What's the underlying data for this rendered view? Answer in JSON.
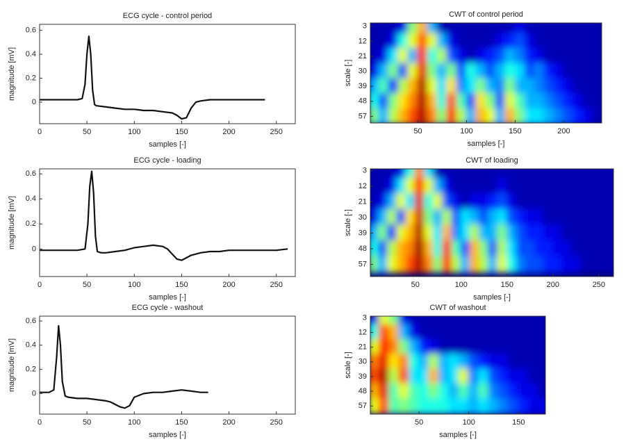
{
  "chart_data": [
    {
      "type": "line",
      "title": "ECG cycle - control period",
      "xlabel": "samples [-]",
      "ylabel": "magnitude [mV]",
      "xlim": [
        0,
        270
      ],
      "xticks": [
        0,
        50,
        100,
        150,
        200,
        250
      ],
      "ylim": [
        -0.18,
        0.65
      ],
      "yticks": [
        0,
        0.2,
        0.4,
        0.6
      ],
      "series": [
        {
          "color": "#111111",
          "x": [
            0,
            10,
            20,
            30,
            40,
            45,
            48,
            50,
            52,
            54,
            56,
            58,
            60,
            70,
            80,
            90,
            100,
            110,
            120,
            130,
            140,
            145,
            150,
            155,
            160,
            165,
            170,
            180,
            190,
            200,
            210,
            220,
            230,
            238
          ],
          "values": [
            0.02,
            0.02,
            0.02,
            0.02,
            0.02,
            0.03,
            0.15,
            0.4,
            0.55,
            0.4,
            0.1,
            -0.02,
            -0.03,
            -0.04,
            -0.05,
            -0.06,
            -0.06,
            -0.07,
            -0.07,
            -0.08,
            -0.09,
            -0.11,
            -0.14,
            -0.13,
            -0.05,
            0.0,
            0.01,
            0.02,
            0.02,
            0.02,
            0.02,
            0.02,
            0.02,
            0.02
          ]
        }
      ]
    },
    {
      "type": "heatmap",
      "title": "CWT of control period",
      "xlabel": "samples [-]",
      "ylabel": "scale [-]",
      "colormap": "jet",
      "xlim": [
        1,
        239
      ],
      "xticks": [
        50,
        100,
        150,
        200
      ],
      "ylim": [
        61,
        1
      ],
      "yticks": [
        3,
        12,
        21,
        30,
        39,
        48,
        57
      ],
      "x": [
        5,
        15,
        25,
        35,
        45,
        55,
        65,
        75,
        85,
        95,
        105,
        115,
        125,
        135,
        145,
        155,
        165,
        175,
        185,
        195,
        205,
        215,
        225,
        235
      ],
      "y": [
        3,
        12,
        21,
        30,
        39,
        48,
        57
      ],
      "z": [
        [
          0.05,
          0.05,
          0.05,
          0.1,
          0.5,
          0.7,
          0.3,
          0.05,
          0.05,
          0.05,
          0.05,
          0.05,
          0.05,
          0.05,
          0.05,
          0.1,
          0.05,
          0.05,
          0.05,
          0.05,
          0.05,
          0.05,
          0.05,
          0.05
        ],
        [
          0.05,
          0.05,
          0.1,
          0.4,
          0.6,
          0.8,
          0.6,
          0.3,
          0.1,
          0.05,
          0.05,
          0.05,
          0.05,
          0.1,
          0.15,
          0.2,
          0.1,
          0.05,
          0.05,
          0.05,
          0.05,
          0.05,
          0.05,
          0.05
        ],
        [
          0.05,
          0.1,
          0.35,
          0.6,
          0.3,
          0.85,
          0.4,
          0.55,
          0.2,
          0.1,
          0.05,
          0.1,
          0.15,
          0.2,
          0.3,
          0.25,
          0.15,
          0.1,
          0.05,
          0.05,
          0.05,
          0.05,
          0.05,
          0.05
        ],
        [
          0.1,
          0.3,
          0.5,
          0.2,
          0.6,
          0.9,
          0.5,
          0.3,
          0.5,
          0.2,
          0.4,
          0.3,
          0.2,
          0.3,
          0.4,
          0.35,
          0.2,
          0.25,
          0.15,
          0.1,
          0.05,
          0.05,
          0.05,
          0.05
        ],
        [
          0.3,
          0.45,
          0.15,
          0.55,
          0.7,
          0.95,
          0.6,
          0.35,
          0.65,
          0.25,
          0.35,
          0.5,
          0.3,
          0.25,
          0.5,
          0.3,
          0.3,
          0.25,
          0.2,
          0.15,
          0.1,
          0.05,
          0.05,
          0.05
        ],
        [
          0.4,
          0.2,
          0.5,
          0.65,
          0.75,
          0.95,
          0.7,
          0.4,
          0.8,
          0.45,
          0.2,
          0.65,
          0.5,
          0.2,
          0.6,
          0.45,
          0.3,
          0.3,
          0.25,
          0.2,
          0.15,
          0.1,
          0.05,
          0.05
        ],
        [
          0.5,
          0.3,
          0.55,
          0.7,
          0.8,
          0.95,
          0.75,
          0.5,
          0.85,
          0.55,
          0.3,
          0.7,
          0.6,
          0.3,
          0.7,
          0.5,
          0.35,
          0.35,
          0.3,
          0.25,
          0.2,
          0.15,
          0.1,
          0.05
        ]
      ]
    },
    {
      "type": "line",
      "title": "ECG cycle - loading",
      "xlabel": "samples [-]",
      "ylabel": "magnitude [mV]",
      "xlim": [
        0,
        270
      ],
      "xticks": [
        0,
        50,
        100,
        150,
        200,
        250
      ],
      "ylim": [
        -0.22,
        0.64
      ],
      "yticks": [
        0,
        0.2,
        0.4,
        0.6
      ],
      "series": [
        {
          "color": "#111111",
          "x": [
            0,
            10,
            20,
            30,
            40,
            48,
            51,
            53,
            55,
            57,
            59,
            61,
            65,
            70,
            80,
            90,
            100,
            110,
            120,
            130,
            135,
            140,
            145,
            150,
            155,
            160,
            170,
            180,
            190,
            200,
            210,
            220,
            230,
            240,
            250,
            262
          ],
          "values": [
            -0.01,
            -0.01,
            -0.01,
            -0.01,
            -0.01,
            0.0,
            0.2,
            0.5,
            0.62,
            0.45,
            0.1,
            -0.02,
            -0.03,
            -0.03,
            -0.02,
            -0.01,
            0.01,
            0.02,
            0.03,
            0.02,
            0.0,
            -0.04,
            -0.08,
            -0.09,
            -0.07,
            -0.05,
            -0.03,
            -0.02,
            -0.02,
            -0.01,
            -0.01,
            -0.01,
            -0.01,
            -0.01,
            -0.01,
            0.0
          ]
        }
      ]
    },
    {
      "type": "heatmap",
      "title": "CWT of loading",
      "xlabel": "samples [-]",
      "ylabel": "scale [-]",
      "colormap": "jet",
      "xlim": [
        1,
        266
      ],
      "xticks": [
        50,
        100,
        150,
        200,
        250
      ],
      "ylim": [
        64,
        2
      ],
      "yticks": [
        3,
        12,
        21,
        30,
        39,
        48,
        57
      ],
      "x": [
        5,
        15,
        25,
        35,
        45,
        55,
        65,
        75,
        85,
        95,
        105,
        115,
        125,
        135,
        145,
        155,
        165,
        175,
        185,
        195,
        205,
        215,
        225,
        235,
        245,
        255,
        265
      ],
      "y": [
        3,
        12,
        21,
        30,
        39,
        48,
        57
      ],
      "z": [
        [
          0.05,
          0.05,
          0.05,
          0.1,
          0.4,
          0.75,
          0.35,
          0.05,
          0.05,
          0.05,
          0.05,
          0.05,
          0.05,
          0.05,
          0.05,
          0.05,
          0.05,
          0.05,
          0.05,
          0.05,
          0.05,
          0.05,
          0.05,
          0.05,
          0.05,
          0.05,
          0.05
        ],
        [
          0.05,
          0.05,
          0.1,
          0.35,
          0.6,
          0.85,
          0.6,
          0.3,
          0.1,
          0.05,
          0.05,
          0.05,
          0.05,
          0.05,
          0.1,
          0.05,
          0.05,
          0.05,
          0.05,
          0.05,
          0.05,
          0.05,
          0.05,
          0.05,
          0.05,
          0.05,
          0.05
        ],
        [
          0.05,
          0.1,
          0.3,
          0.6,
          0.35,
          0.9,
          0.4,
          0.6,
          0.2,
          0.1,
          0.05,
          0.1,
          0.1,
          0.15,
          0.2,
          0.1,
          0.05,
          0.05,
          0.05,
          0.05,
          0.05,
          0.05,
          0.05,
          0.05,
          0.05,
          0.05,
          0.05
        ],
        [
          0.1,
          0.3,
          0.55,
          0.2,
          0.65,
          0.92,
          0.5,
          0.3,
          0.55,
          0.2,
          0.35,
          0.3,
          0.2,
          0.3,
          0.35,
          0.2,
          0.15,
          0.1,
          0.1,
          0.05,
          0.05,
          0.05,
          0.05,
          0.05,
          0.05,
          0.05,
          0.05
        ],
        [
          0.3,
          0.5,
          0.15,
          0.6,
          0.7,
          0.95,
          0.6,
          0.35,
          0.7,
          0.25,
          0.35,
          0.55,
          0.3,
          0.3,
          0.5,
          0.3,
          0.2,
          0.15,
          0.15,
          0.1,
          0.1,
          0.05,
          0.05,
          0.05,
          0.05,
          0.05,
          0.05
        ],
        [
          0.4,
          0.2,
          0.55,
          0.7,
          0.75,
          0.97,
          0.7,
          0.4,
          0.85,
          0.45,
          0.2,
          0.7,
          0.5,
          0.2,
          0.55,
          0.35,
          0.2,
          0.2,
          0.15,
          0.15,
          0.1,
          0.1,
          0.05,
          0.05,
          0.05,
          0.05,
          0.05
        ],
        [
          0.5,
          0.3,
          0.6,
          0.7,
          0.8,
          0.95,
          0.75,
          0.5,
          0.85,
          0.55,
          0.3,
          0.7,
          0.55,
          0.3,
          0.6,
          0.4,
          0.25,
          0.2,
          0.2,
          0.15,
          0.15,
          0.1,
          0.1,
          0.05,
          0.05,
          0.05,
          0.05
        ]
      ]
    },
    {
      "type": "line",
      "title": "ECG cycle - washout",
      "xlabel": "samples [-]",
      "ylabel": "magnitude [mV]",
      "xlim": [
        0,
        270
      ],
      "xticks": [
        0,
        50,
        100,
        150,
        200,
        250
      ],
      "ylim": [
        -0.17,
        0.64
      ],
      "yticks": [
        0,
        0.2,
        0.4,
        0.6
      ],
      "series": [
        {
          "color": "#111111",
          "x": [
            0,
            10,
            15,
            18,
            20,
            22,
            24,
            27,
            30,
            40,
            50,
            60,
            70,
            75,
            80,
            85,
            90,
            95,
            100,
            110,
            120,
            130,
            140,
            150,
            160,
            170,
            178
          ],
          "values": [
            0.01,
            0.01,
            0.03,
            0.3,
            0.56,
            0.4,
            0.1,
            -0.02,
            -0.03,
            -0.04,
            -0.04,
            -0.05,
            -0.06,
            -0.07,
            -0.09,
            -0.11,
            -0.12,
            -0.1,
            -0.03,
            0.0,
            0.01,
            0.01,
            0.02,
            0.03,
            0.02,
            0.01,
            0.01
          ]
        }
      ]
    },
    {
      "type": "heatmap",
      "title": "CWT of washout",
      "xlabel": "samples [-]",
      "ylabel": "scale [-]",
      "colormap": "jet",
      "xlim": [
        1,
        177
      ],
      "xticks": [
        50,
        100,
        150
      ],
      "ylim": [
        62,
        2
      ],
      "yticks": [
        3,
        12,
        21,
        30,
        39,
        48,
        57
      ],
      "x": [
        5,
        15,
        25,
        35,
        45,
        55,
        65,
        75,
        85,
        95,
        105,
        115,
        125,
        135,
        145,
        155,
        165,
        175
      ],
      "y": [
        3,
        12,
        21,
        30,
        39,
        48,
        57
      ],
      "z": [
        [
          0.1,
          0.6,
          0.5,
          0.1,
          0.05,
          0.05,
          0.05,
          0.05,
          0.05,
          0.05,
          0.05,
          0.05,
          0.05,
          0.05,
          0.05,
          0.05,
          0.05,
          0.05
        ],
        [
          0.4,
          0.8,
          0.7,
          0.3,
          0.1,
          0.05,
          0.05,
          0.05,
          0.05,
          0.05,
          0.05,
          0.05,
          0.05,
          0.05,
          0.05,
          0.05,
          0.05,
          0.05
        ],
        [
          0.6,
          0.85,
          0.75,
          0.5,
          0.3,
          0.15,
          0.1,
          0.05,
          0.05,
          0.05,
          0.05,
          0.05,
          0.05,
          0.05,
          0.05,
          0.05,
          0.05,
          0.05
        ],
        [
          0.75,
          0.9,
          0.65,
          0.75,
          0.4,
          0.3,
          0.55,
          0.3,
          0.35,
          0.3,
          0.2,
          0.15,
          0.1,
          0.1,
          0.05,
          0.05,
          0.05,
          0.05
        ],
        [
          0.8,
          0.95,
          0.55,
          0.8,
          0.35,
          0.35,
          0.7,
          0.3,
          0.35,
          0.6,
          0.25,
          0.35,
          0.2,
          0.15,
          0.1,
          0.1,
          0.05,
          0.05
        ],
        [
          0.7,
          0.9,
          0.45,
          0.6,
          0.45,
          0.4,
          0.5,
          0.4,
          0.3,
          0.45,
          0.3,
          0.45,
          0.25,
          0.2,
          0.15,
          0.1,
          0.1,
          0.05
        ],
        [
          0.6,
          0.8,
          0.45,
          0.5,
          0.45,
          0.4,
          0.4,
          0.4,
          0.35,
          0.35,
          0.3,
          0.35,
          0.3,
          0.25,
          0.2,
          0.15,
          0.1,
          0.1
        ]
      ]
    }
  ]
}
